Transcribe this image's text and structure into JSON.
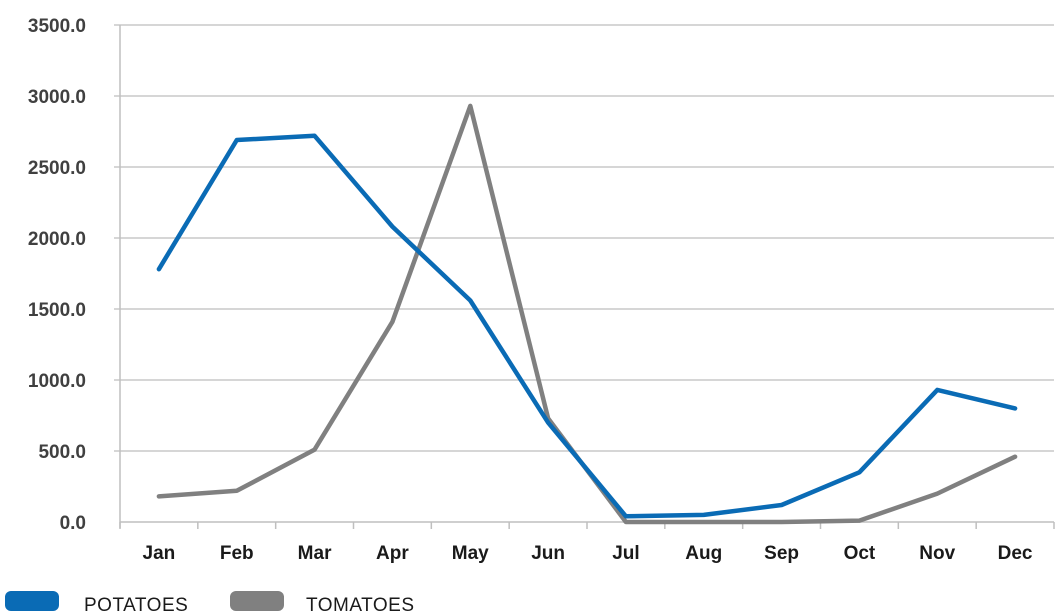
{
  "chart_data": {
    "type": "line",
    "title": "",
    "xlabel": "",
    "ylabel": "",
    "categories": [
      "Jan",
      "Feb",
      "Mar",
      "Apr",
      "May",
      "Jun",
      "Jul",
      "Aug",
      "Sep",
      "Oct",
      "Nov",
      "Dec"
    ],
    "yticks": [
      "0.0",
      "500.0",
      "1000.0",
      "1500.0",
      "2000.0",
      "2500.0",
      "3000.0",
      "3500.0"
    ],
    "ylim": [
      0,
      3500
    ],
    "grid": true,
    "legend_position": "bottom-left",
    "series": [
      {
        "name": "POTATOES",
        "color": "#0a6bb5",
        "values": [
          1780,
          2690,
          2720,
          2080,
          1560,
          700,
          40,
          50,
          120,
          350,
          930,
          800
        ]
      },
      {
        "name": "TOMATOES",
        "color": "#808080",
        "values": [
          180,
          220,
          510,
          1410,
          2930,
          730,
          0,
          0,
          0,
          10,
          200,
          460
        ]
      }
    ]
  }
}
